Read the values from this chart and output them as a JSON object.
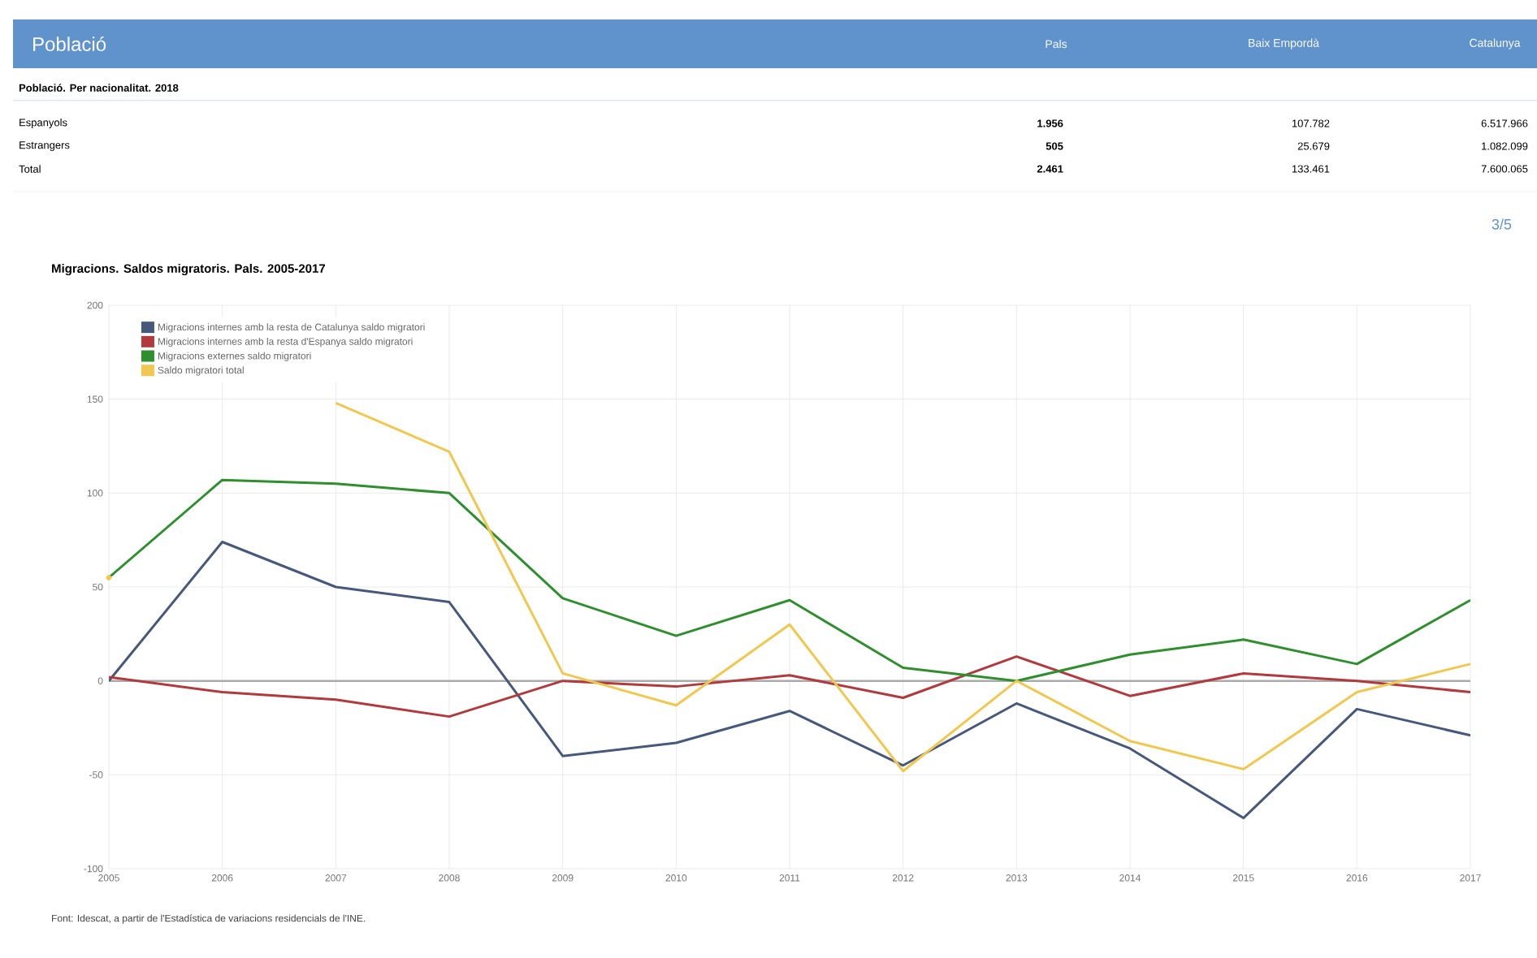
{
  "chart_data": {
    "type": "line",
    "title": "Migracions. Saldos migratoris. Pals. 2005-2017",
    "x": [
      2005,
      2006,
      2007,
      2008,
      2009,
      2010,
      2011,
      2012,
      2013,
      2014,
      2015,
      2016,
      2017
    ],
    "series": [
      {
        "name": "Migracions internes amb la resta de Catalunya saldo migratori",
        "color": "#46597a",
        "values": [
          0,
          74,
          50,
          42,
          -40,
          -33,
          -16,
          -45,
          -12,
          -36,
          -73,
          -15,
          -29
        ]
      },
      {
        "name": "Migracions internes amb la resta d'Espanya saldo migratori",
        "color": "#b03a3e",
        "values": [
          2,
          -6,
          -10,
          -19,
          0,
          -3,
          3,
          -9,
          13,
          -8,
          4,
          0,
          -6
        ]
      },
      {
        "name": "Migracions externes saldo migratori",
        "color": "#2f8f2f",
        "values": [
          55,
          107,
          105,
          100,
          44,
          24,
          43,
          7,
          0,
          14,
          22,
          9,
          43
        ]
      },
      {
        "name": "Saldo migratori total",
        "color": "#f0c850",
        "values": [
          55,
          null,
          148,
          122,
          4,
          -13,
          30,
          -48,
          0,
          -32,
          -47,
          -6,
          9
        ]
      }
    ],
    "xlim": [
      2005,
      2017
    ],
    "xticks": [
      2005,
      2006,
      2007,
      2008,
      2009,
      2010,
      2011,
      2012,
      2013,
      2014,
      2015,
      2016,
      2017
    ],
    "ylim": [
      -100,
      200
    ],
    "yticks": [
      -100,
      -50,
      0,
      50,
      100,
      150,
      200
    ],
    "ref_lines": [
      {
        "axis": "y",
        "value": 0,
        "color": "#aaaaaa"
      }
    ],
    "grid": true,
    "legend": "top left",
    "marker": "none",
    "line_style": "solid",
    "annotations": [
      "Font: Idescat, a partir de l'Estadística de variacions residencials de l'INE.",
      "3/5",
      "Població",
      "Pals",
      "Baix Empordà",
      "Catalunya",
      "Població. Per nacionalitat. 2018",
      "Espanyols",
      "1.956",
      "107.782",
      "6.517.966",
      "Estrangers",
      "505",
      "25.679",
      "1.082.099",
      "Total",
      "2.461",
      "133.461",
      "7.600.065"
    ]
  }
}
